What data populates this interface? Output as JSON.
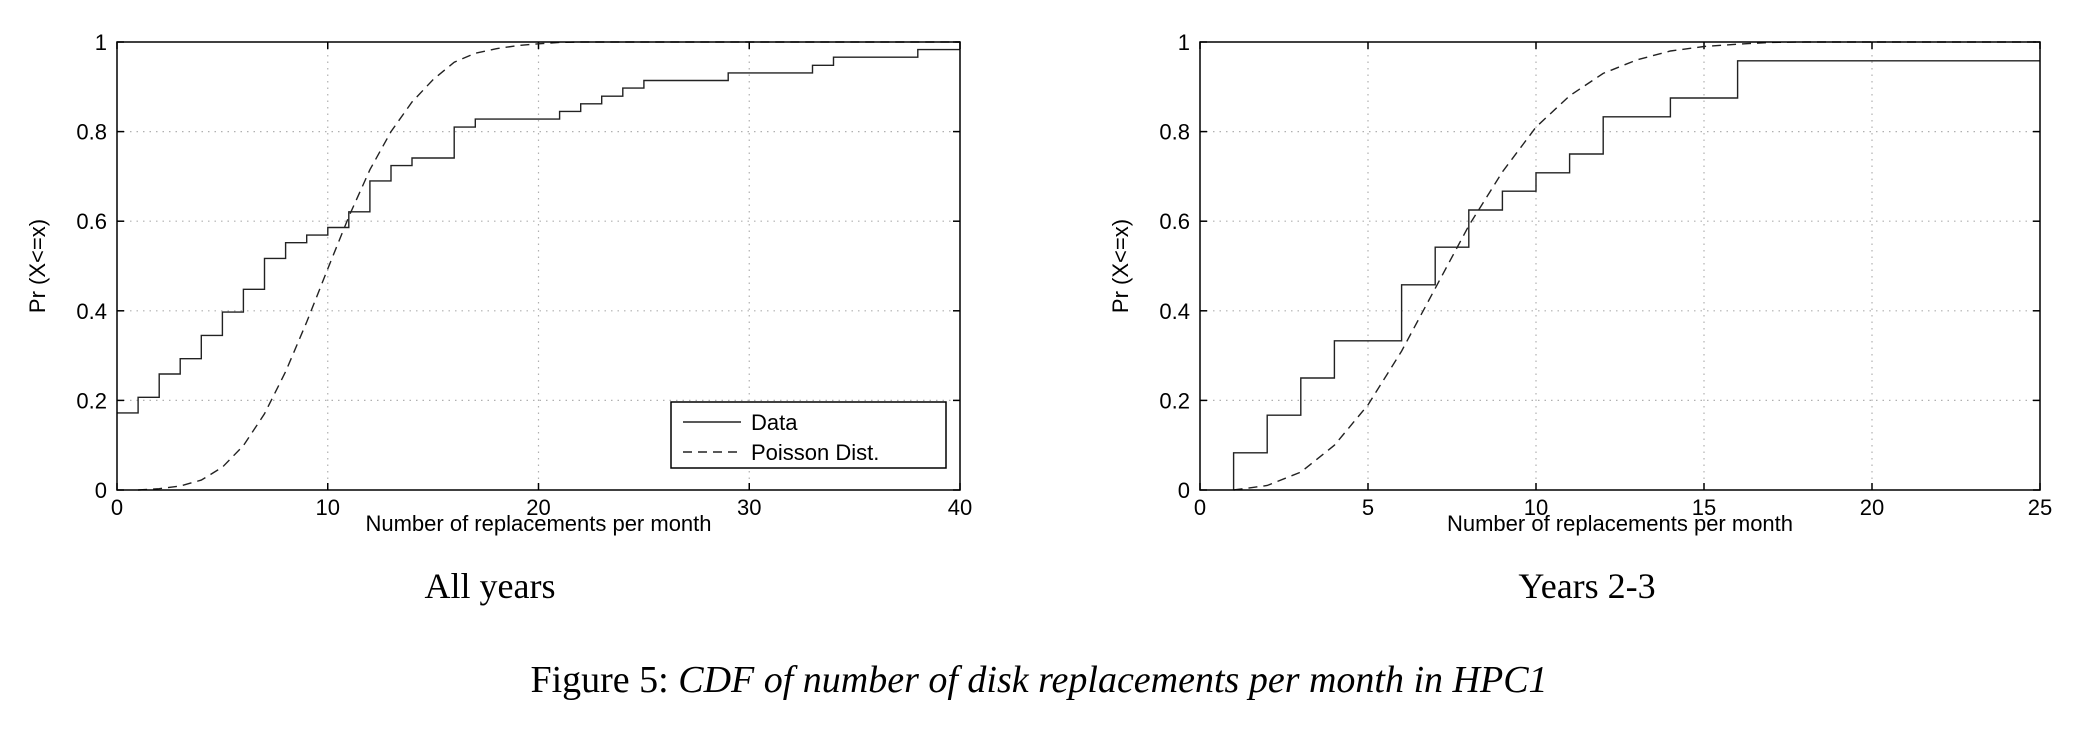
{
  "caption": {
    "label": "Figure 5:",
    "text": "CDF of number of disk replacements per month in HPC1"
  },
  "chart_data": [
    {
      "type": "line",
      "subtitle": "All years",
      "xlabel": "Number of replacements per month",
      "ylabel": "Pr (X<=x)",
      "xlim": [
        0,
        40
      ],
      "ylim": [
        0,
        1
      ],
      "xticks": [
        0,
        10,
        20,
        30,
        40
      ],
      "yticks": [
        0,
        0.2,
        0.4,
        0.6,
        0.8,
        1
      ],
      "grid": true,
      "legend": {
        "position": "bottom-right",
        "entries": [
          "Data",
          "Poisson Dist."
        ]
      },
      "series": [
        {
          "name": "Data",
          "style": "solid",
          "step": true,
          "x": [
            0,
            1,
            2,
            3,
            4,
            5,
            6,
            7,
            8,
            9,
            10,
            11,
            12,
            13,
            14,
            16,
            17,
            21,
            22,
            23,
            24,
            25,
            26,
            29,
            33,
            34,
            38
          ],
          "y": [
            0.172,
            0.207,
            0.259,
            0.293,
            0.345,
            0.397,
            0.448,
            0.517,
            0.552,
            0.569,
            0.586,
            0.621,
            0.69,
            0.724,
            0.741,
            0.81,
            0.828,
            0.845,
            0.862,
            0.879,
            0.897,
            0.914,
            0.914,
            0.931,
            0.948,
            0.966,
            0.983
          ]
        },
        {
          "name": "Poisson Dist.",
          "style": "dashed",
          "x": [
            1,
            2,
            3,
            4,
            5,
            6,
            7,
            8,
            9,
            10,
            11,
            12,
            13,
            14,
            15,
            16,
            17,
            18,
            19,
            20,
            21,
            22
          ],
          "y": [
            0.0,
            0.003,
            0.009,
            0.022,
            0.051,
            0.099,
            0.17,
            0.264,
            0.375,
            0.494,
            0.61,
            0.715,
            0.8,
            0.866,
            0.916,
            0.955,
            0.975,
            0.985,
            0.992,
            0.996,
            0.999,
            1.0
          ]
        }
      ]
    },
    {
      "type": "line",
      "subtitle": "Years 2-3",
      "xlabel": "Number of replacements per month",
      "ylabel": "Pr (X<=x)",
      "xlim": [
        0,
        25
      ],
      "ylim": [
        0,
        1
      ],
      "xticks": [
        0,
        5,
        10,
        15,
        20,
        25
      ],
      "yticks": [
        0,
        0.2,
        0.4,
        0.6,
        0.8,
        1
      ],
      "grid": true,
      "series": [
        {
          "name": "Data",
          "style": "solid",
          "step": true,
          "x": [
            1,
            2,
            3,
            4,
            6,
            7,
            8,
            9,
            10,
            11,
            12,
            14,
            16,
            25
          ],
          "y": [
            0.083,
            0.167,
            0.25,
            0.333,
            0.458,
            0.542,
            0.625,
            0.667,
            0.708,
            0.75,
            0.833,
            0.875,
            0.958,
            0.958
          ]
        },
        {
          "name": "Poisson Dist.",
          "style": "dashed",
          "x": [
            1,
            2,
            3,
            4,
            5,
            6,
            7,
            8,
            9,
            10,
            11,
            12,
            13,
            14,
            15,
            16,
            17,
            18
          ],
          "y": [
            0.0,
            0.01,
            0.04,
            0.1,
            0.19,
            0.31,
            0.45,
            0.59,
            0.71,
            0.81,
            0.88,
            0.93,
            0.96,
            0.98,
            0.99,
            0.995,
            0.999,
            1.0
          ]
        }
      ]
    }
  ]
}
